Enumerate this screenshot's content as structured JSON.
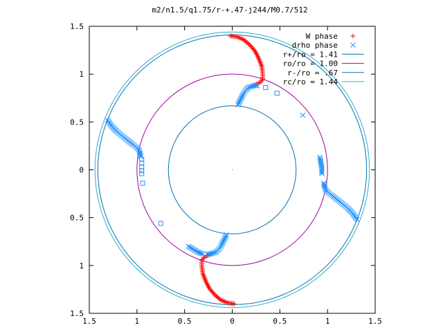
{
  "chart_data": {
    "type": "scatter",
    "title": "m2/n1.5/q1.75/r-+.47-j244/M0.7/512",
    "xlabel": "",
    "ylabel": "",
    "xlim": [
      -1.5,
      1.5
    ],
    "ylim": [
      -1.5,
      1.5
    ],
    "x_ticks": [
      -1.5,
      -1,
      -0.5,
      0,
      0.5,
      1,
      1.5
    ],
    "y_ticks": [
      -1.5,
      -1,
      -0.5,
      0,
      0.5,
      1,
      1.5
    ],
    "x_tick_labels": [
      "1.5",
      "1",
      "0.5",
      "0",
      "0.5",
      "1",
      "1.5"
    ],
    "y_tick_labels": [
      "1.5",
      "1",
      "0.5",
      "0",
      "0.5",
      "1",
      "1.5"
    ],
    "grid": false,
    "legend_position": "top-right",
    "circles": [
      {
        "label": "r+/ro = 1.41",
        "radius": 1.41,
        "color": "#0072b2"
      },
      {
        "label": "ro/ro = 1.00",
        "radius": 1.0,
        "color": "#a000a0"
      },
      {
        "label": "r-/ro = .67",
        "radius": 0.67,
        "color": "#0072b2"
      },
      {
        "label": "rc/ro = 1.44",
        "radius": 1.44,
        "color": "#33aacc"
      }
    ],
    "series": [
      {
        "name": "W phase",
        "marker": "plus",
        "color": "#ff0000",
        "x": [
          -0.02,
          0.05,
          0.12,
          0.18,
          0.24,
          0.28,
          0.31,
          0.32,
          0.32,
          0.3,
          0.27,
          0.24,
          0.22,
          0.02,
          -0.05,
          -0.12,
          -0.18,
          -0.24,
          -0.28,
          -0.31,
          -0.32,
          -0.32,
          -0.3,
          -0.27,
          -0.24,
          -0.22
        ],
        "y": [
          1.4,
          1.39,
          1.36,
          1.31,
          1.24,
          1.16,
          1.08,
          1.0,
          0.95,
          0.92,
          0.9,
          0.89,
          0.88,
          -1.4,
          -1.39,
          -1.36,
          -1.31,
          -1.24,
          -1.16,
          -1.08,
          -1.0,
          -0.95,
          -0.92,
          -0.9,
          -0.89,
          -0.88
        ]
      },
      {
        "name": "drho phase",
        "marker": "cross",
        "color": "#1e90ff",
        "x": [
          -1.31,
          -1.26,
          -1.21,
          -1.15,
          -1.1,
          -1.05,
          -1.01,
          -0.98,
          -0.97,
          -0.96,
          0.06,
          0.08,
          0.1,
          0.12,
          0.14,
          0.17,
          0.2,
          0.23,
          0.26,
          1.31,
          1.26,
          1.21,
          1.15,
          1.1,
          1.05,
          1.01,
          0.98,
          0.97,
          0.96,
          -0.06,
          -0.08,
          -0.1,
          -0.12,
          -0.14,
          -0.17,
          -0.2,
          -0.23,
          -0.26,
          0.74,
          0.92,
          0.94,
          0.94,
          -0.46,
          -0.36,
          -0.31
        ],
        "y": [
          0.52,
          0.45,
          0.4,
          0.35,
          0.31,
          0.27,
          0.24,
          0.21,
          0.18,
          0.14,
          0.68,
          0.72,
          0.76,
          0.8,
          0.83,
          0.86,
          0.87,
          0.88,
          0.88,
          -0.52,
          -0.45,
          -0.4,
          -0.35,
          -0.31,
          -0.27,
          -0.24,
          -0.21,
          -0.18,
          -0.14,
          -0.68,
          -0.72,
          -0.76,
          -0.8,
          -0.83,
          -0.86,
          -0.87,
          -0.88,
          -0.88,
          0.57,
          0.13,
          0.02,
          -0.04,
          -0.8,
          -0.86,
          -0.88
        ]
      },
      {
        "name": "",
        "marker": "square",
        "color": "#1e90ff",
        "x": [
          0.35,
          0.47,
          -0.95,
          -0.95,
          -0.95,
          -0.95,
          -0.95,
          -0.94,
          -0.75
        ],
        "y": [
          0.86,
          0.8,
          0.11,
          0.07,
          0.03,
          -0.01,
          -0.04,
          -0.14,
          -0.56
        ]
      }
    ]
  }
}
